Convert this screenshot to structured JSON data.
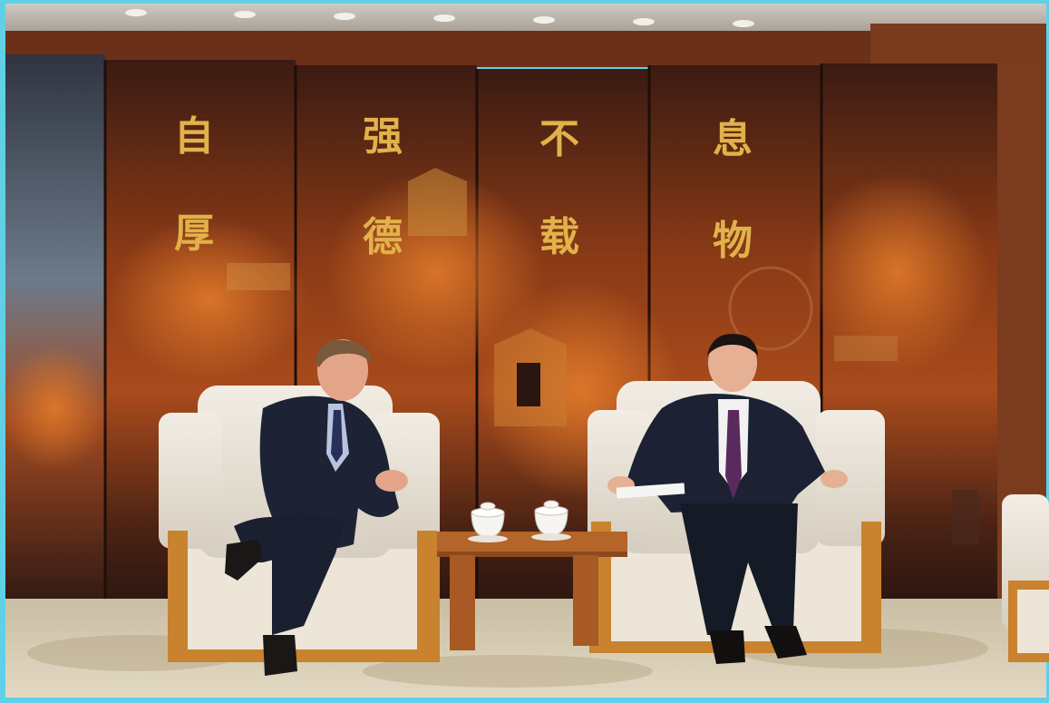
{
  "photo": {
    "screen_calligraphy": {
      "upper_row": [
        "自",
        "强",
        "不",
        "息"
      ],
      "lower_row": [
        "厚",
        "德",
        "载",
        "物"
      ]
    },
    "colors": {
      "border": "#5fd0e6",
      "ceiling": "#d9d6cf",
      "screen_dark": "#2a1410",
      "screen_orange": "#b3541e",
      "gold_text": "#e2b24a",
      "armchair": "#e9e2d6",
      "armchair_wood": "#c9822e",
      "table_wood": "#b4652a",
      "carpet": "#d8cdb4",
      "suit_navy": "#1c2233",
      "tie_purple": "#5a2a5e"
    }
  }
}
